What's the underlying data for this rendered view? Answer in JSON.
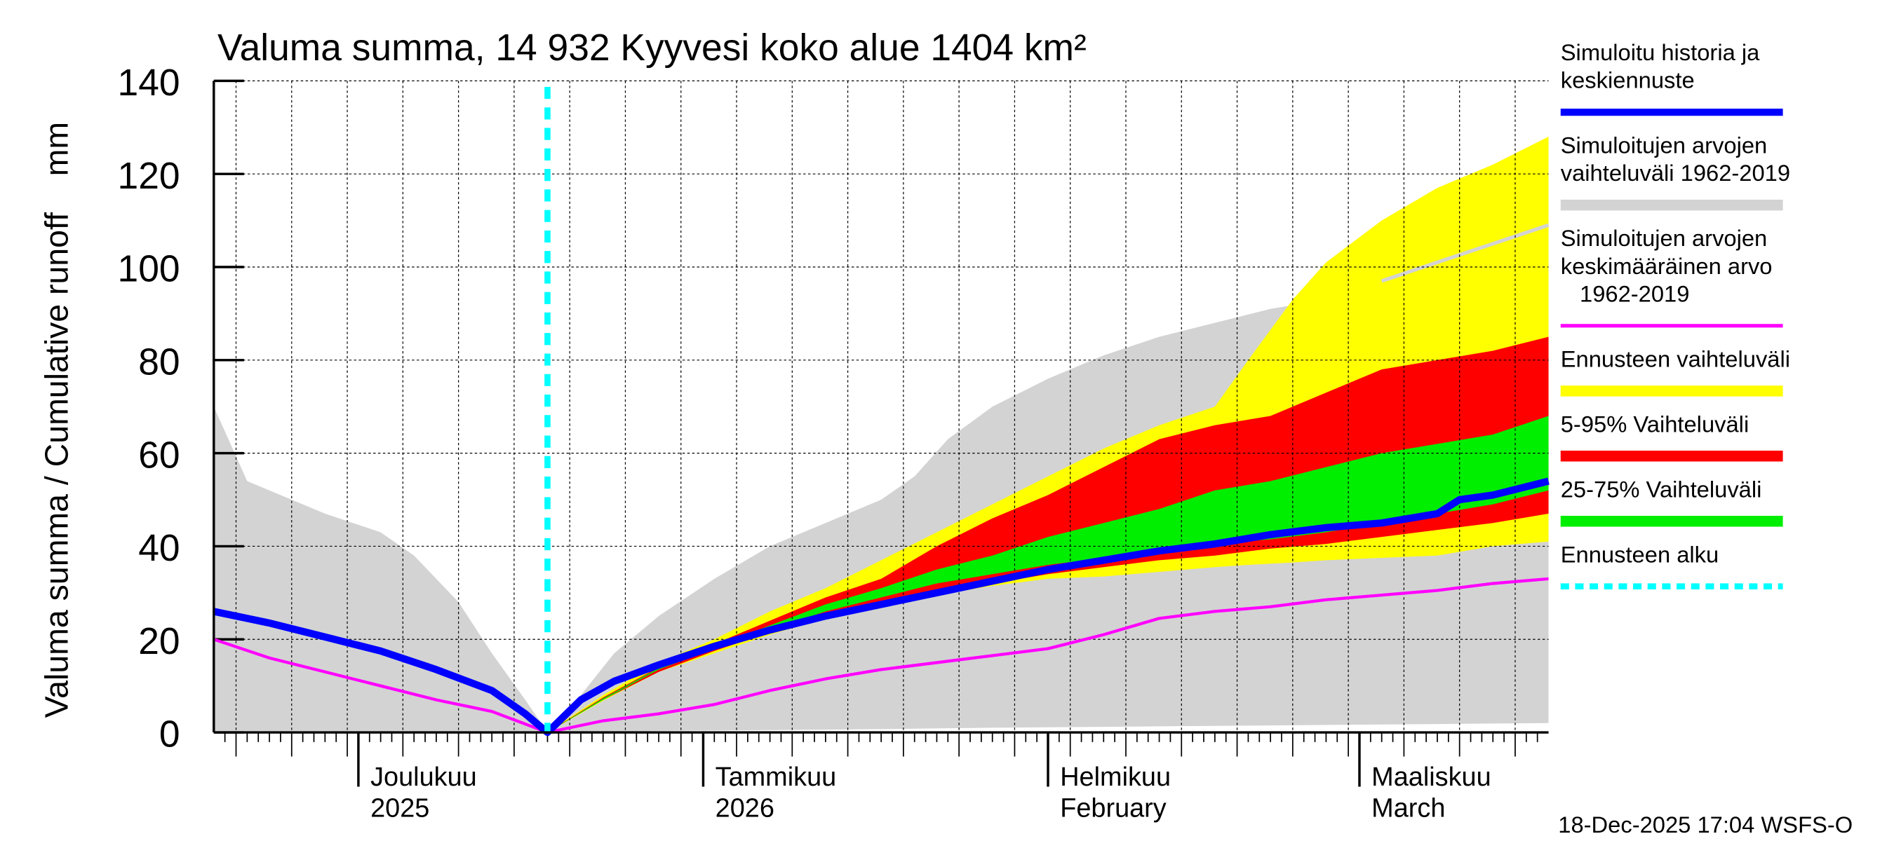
{
  "chart_data": {
    "type": "area",
    "title": "Valuma summa, 14 932 Kyyvesi koko alue 1404 km²",
    "ylabel": "Valuma summa / Cumulative runoff    mm",
    "ylim": [
      0,
      140
    ],
    "yticks": [
      0,
      20,
      40,
      60,
      80,
      100,
      120,
      140
    ],
    "xlim_days": [
      0,
      120
    ],
    "x_origin_date": "2025-11-18",
    "forecast_start_day": 30,
    "month_ticks": [
      {
        "day": 13,
        "line1": "Joulukuu",
        "line2": "2025"
      },
      {
        "day": 44,
        "line1": "Tammikuu",
        "line2": "2026"
      },
      {
        "day": 75,
        "line1": "Helmikuu",
        "line2": "February"
      },
      {
        "day": 103,
        "line1": "Maaliskuu",
        "line2": "March"
      }
    ],
    "grid": true,
    "legend_placement": "right",
    "series": [
      {
        "name": "Simuloitujen arvojen vaihteluväli 1962-2019",
        "kind": "band",
        "color": "#d3d3d3",
        "x": [
          0,
          3,
          6,
          10,
          15,
          18,
          22,
          25,
          28,
          30,
          33,
          36,
          40,
          45,
          50,
          55,
          60,
          63,
          66,
          70,
          75,
          80,
          85,
          90,
          95,
          100,
          105,
          110,
          115,
          120
        ],
        "upper": [
          70,
          54,
          51,
          47,
          43,
          38,
          28,
          17,
          7,
          0,
          8,
          17,
          25,
          33,
          40,
          45,
          50,
          55,
          63,
          70,
          76,
          81,
          85,
          88,
          91,
          93,
          97,
          101,
          105,
          109
        ],
        "lower": [
          0,
          0,
          0,
          0,
          0,
          0,
          0,
          0,
          0,
          0,
          0,
          0.2,
          0.3,
          0.4,
          0.5,
          0.6,
          0.7,
          0.8,
          0.9,
          1,
          1.1,
          1.2,
          1.3,
          1.4,
          1.5,
          1.6,
          1.7,
          1.8,
          1.9,
          2
        ]
      },
      {
        "name": "Ennusteen vaihteluväli",
        "kind": "band",
        "color": "#ffff00",
        "x": [
          30,
          35,
          40,
          45,
          50,
          55,
          60,
          65,
          70,
          75,
          80,
          85,
          90,
          93,
          97,
          100,
          105,
          110,
          115,
          120
        ],
        "upper": [
          0,
          8,
          15,
          20,
          26,
          31,
          37,
          43,
          49,
          55,
          61,
          66,
          70,
          80,
          93,
          101,
          110,
          117,
          122,
          128
        ],
        "lower": [
          0,
          6.8,
          13,
          17,
          21,
          24.5,
          27,
          29.5,
          31.5,
          33,
          33.5,
          34.5,
          35.5,
          36,
          36.5,
          37,
          37.5,
          38,
          40,
          41
        ]
      },
      {
        "name": "5-95% Vaihteluväli",
        "kind": "band",
        "color": "#ff0000",
        "x": [
          30,
          35,
          40,
          45,
          50,
          55,
          60,
          65,
          70,
          75,
          80,
          85,
          90,
          95,
          100,
          105,
          110,
          115,
          120
        ],
        "upper": [
          0,
          7.5,
          14,
          19,
          24,
          29,
          33,
          40,
          46,
          51,
          57,
          63,
          66,
          68,
          73,
          78,
          80,
          82,
          85
        ],
        "lower": [
          0,
          7,
          13,
          17.5,
          21.5,
          25,
          27.5,
          30,
          32,
          34,
          35.5,
          37,
          38,
          39.5,
          40.5,
          42,
          43.5,
          45,
          47
        ]
      },
      {
        "name": "25-75% Vaihteluväli",
        "kind": "band",
        "color": "#00ee00",
        "x": [
          30,
          35,
          40,
          45,
          50,
          55,
          60,
          65,
          70,
          75,
          80,
          85,
          90,
          95,
          100,
          105,
          110,
          115,
          120
        ],
        "upper": [
          0,
          7.3,
          13.8,
          18.5,
          23,
          27.5,
          31,
          35,
          38,
          42,
          45,
          48,
          52,
          54,
          57,
          60,
          62,
          64,
          68
        ],
        "lower": [
          0,
          7,
          13.5,
          18,
          22,
          26,
          29,
          32,
          34,
          36,
          37.5,
          39,
          40.5,
          41.5,
          43,
          45,
          47,
          49,
          52
        ]
      },
      {
        "name": "Simuloitujen arvojen keskimääräinen arvo 1962-2019",
        "kind": "line",
        "color": "#ff00ff",
        "x": [
          0,
          5,
          10,
          15,
          20,
          25,
          30,
          35,
          40,
          45,
          50,
          55,
          60,
          65,
          70,
          75,
          80,
          85,
          90,
          95,
          100,
          105,
          110,
          115,
          120
        ],
        "values": [
          20,
          16,
          13,
          10,
          7,
          4.5,
          0,
          2.5,
          4,
          6,
          9,
          11.5,
          13.5,
          15,
          16.5,
          18,
          21,
          24.5,
          26,
          27,
          28.5,
          29.5,
          30.5,
          32,
          33
        ]
      },
      {
        "name": "Simuloitu historia ja keskiennuste",
        "kind": "line",
        "color": "#0000ff",
        "x": [
          0,
          5,
          10,
          15,
          20,
          25,
          28,
          30,
          33,
          36,
          40,
          45,
          50,
          55,
          60,
          65,
          70,
          75,
          80,
          85,
          90,
          95,
          100,
          105,
          110,
          112,
          115,
          120
        ],
        "values": [
          26,
          23.5,
          20.5,
          17.5,
          13.5,
          9,
          4,
          0,
          7,
          11,
          14.5,
          18.5,
          22,
          25,
          27.5,
          30,
          32.5,
          35,
          37,
          39,
          40.5,
          42.5,
          44,
          45,
          47,
          50,
          51,
          54
        ]
      }
    ]
  },
  "legend": [
    {
      "lines": [
        "Simuloitu historia ja",
        "keskiennuste"
      ],
      "color": "#0000ff",
      "style": "line"
    },
    {
      "lines": [
        "Simuloitujen arvojen",
        "vaihteluväli 1962-2019"
      ],
      "color": "#d3d3d3",
      "style": "bar"
    },
    {
      "lines": [
        "Simuloitujen arvojen",
        "keskimääräinen arvo",
        "   1962-2019"
      ],
      "color": "#ff00ff",
      "style": "thin"
    },
    {
      "lines": [
        "Ennusteen vaihteluväli"
      ],
      "color": "#ffff00",
      "style": "bar"
    },
    {
      "lines": [
        "5-95% Vaihteluväli"
      ],
      "color": "#ff0000",
      "style": "bar"
    },
    {
      "lines": [
        "25-75% Vaihteluväli"
      ],
      "color": "#00ee00",
      "style": "bar"
    },
    {
      "lines": [
        "Ennusteen alku"
      ],
      "color": "#00ffff",
      "style": "dash"
    }
  ],
  "footer": "18-Dec-2025 17:04 WSFS-O"
}
